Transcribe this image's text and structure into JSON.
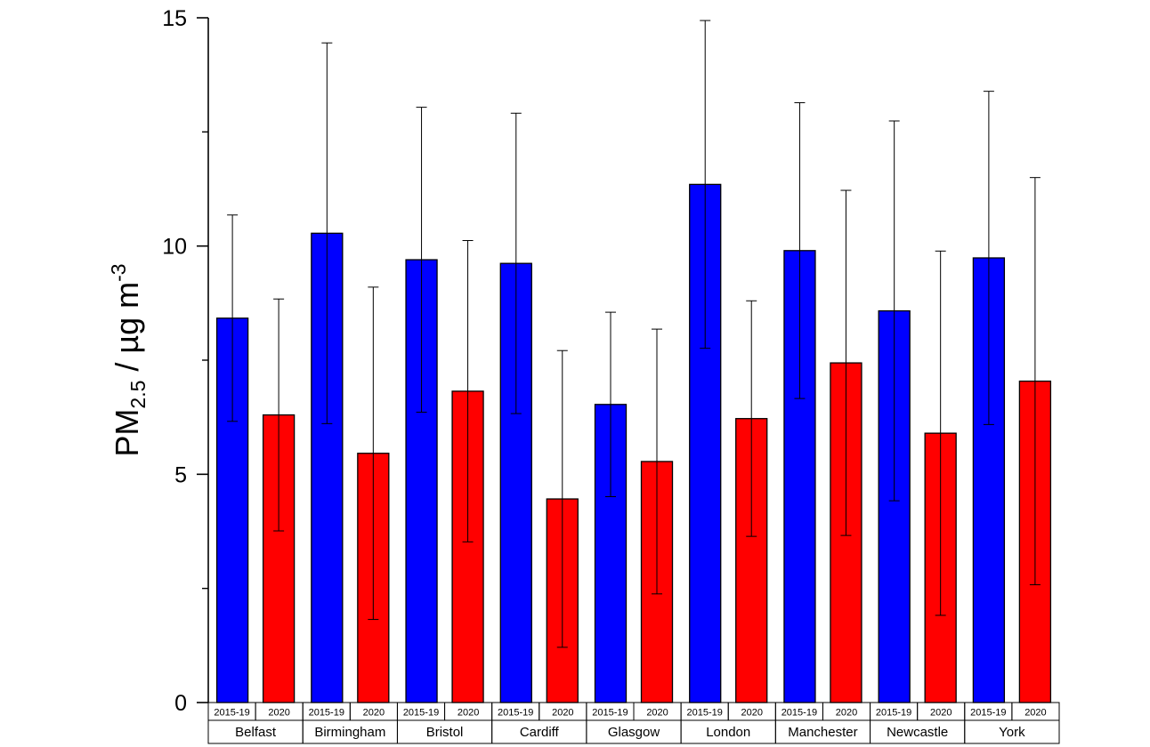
{
  "chart_data": {
    "type": "bar",
    "title": "",
    "xlabel": "",
    "ylabel": {
      "base": "PM",
      "sub": "2.5",
      "middle": " / µg m",
      "sup": "-3"
    },
    "ylim": [
      0,
      15
    ],
    "yticks": [
      0,
      5,
      10,
      15
    ],
    "grid": false,
    "legend": "none",
    "categories": [
      "Belfast",
      "Birmingham",
      "Bristol",
      "Cardiff",
      "Glasgow",
      "London",
      "Manchester",
      "Newcastle",
      "York"
    ],
    "series": [
      {
        "label": "2015-19",
        "color": "#0000ff",
        "values": [
          8.42,
          10.28,
          9.7,
          9.62,
          6.53,
          11.35,
          9.9,
          8.58,
          9.74
        ],
        "error": [
          2.26,
          4.17,
          3.34,
          3.29,
          2.02,
          3.59,
          3.24,
          4.16,
          3.65
        ]
      },
      {
        "label": "2020",
        "color": "#ff0000",
        "values": [
          6.3,
          5.46,
          6.82,
          4.46,
          5.28,
          6.22,
          7.44,
          5.9,
          7.04
        ],
        "error": [
          2.54,
          3.64,
          3.3,
          3.25,
          2.9,
          2.58,
          3.78,
          3.99,
          4.46
        ]
      }
    ]
  }
}
